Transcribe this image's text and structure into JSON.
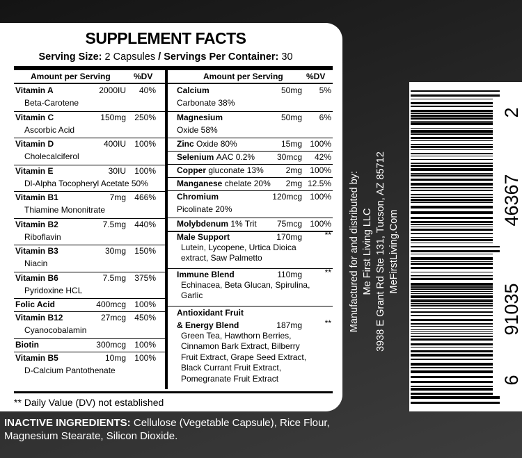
{
  "header": {
    "title": "SUPPLEMENT FACTS",
    "serving_size_label": "Serving Size:",
    "serving_size": "2 Capsules",
    "separator": "/",
    "servings_label": "Servings Per Container:",
    "servings": "30"
  },
  "columns": {
    "amount": "Amount per Serving",
    "dv": "%DV"
  },
  "left_rows": [
    {
      "name": "Vitamin A",
      "amount": "2000IU",
      "dv": "40%",
      "detail": [
        "Beta-Carotene"
      ]
    },
    {
      "name": "Vitamin C",
      "amount": "150mg",
      "dv": "250%",
      "detail": [
        "Ascorbic Acid"
      ]
    },
    {
      "name": "Vitamin D",
      "amount": "400IU",
      "dv": "100%",
      "detail": [
        "Cholecalciferol"
      ]
    },
    {
      "name": "Vitamin E",
      "amount": "30IU",
      "dv": "100%",
      "detail": [
        "Dl-Alpha Tocopheryl Acetate 50%"
      ]
    },
    {
      "name": "Vitamin B1",
      "amount": "7mg",
      "dv": "466%",
      "detail": [
        "Thiamine Mononitrate"
      ]
    },
    {
      "name": "Vitamin B2",
      "amount": "7.5mg",
      "dv": "440%",
      "detail": [
        "Riboflavin"
      ]
    },
    {
      "name": "Vitamin B3",
      "amount": "30mg",
      "dv": "150%",
      "detail": [
        "Niacin"
      ]
    },
    {
      "name": "Vitamin B6",
      "amount": "7.5mg",
      "dv": "375%",
      "detail": [
        "Pyridoxine HCL"
      ]
    },
    {
      "name": "Folic Acid",
      "amount": "400mcg",
      "dv": "100%"
    },
    {
      "name": "Vitamin B12",
      "amount": "27mcg",
      "dv": "450%",
      "detail": [
        "Cyanocobalamin"
      ]
    },
    {
      "name": "Biotin",
      "amount": "300mcg",
      "dv": "100%"
    },
    {
      "name": "Vitamin B5",
      "amount": "10mg",
      "dv": "100%",
      "detail": [
        "D-Calcium Pantothenate"
      ]
    }
  ],
  "right_rows": [
    {
      "name": "Calcium",
      "amount": "50mg",
      "dv": "5%",
      "detail": [
        "Carbonate 38%"
      ]
    },
    {
      "name": "Magnesium",
      "amount": "50mg",
      "dv": "6%",
      "detail": [
        "Oxide 58%"
      ]
    },
    {
      "name": "Zinc",
      "extra": "Oxide 80%",
      "amount": "15mg",
      "dv": "100%"
    },
    {
      "name": "Selenium",
      "extra": "AAC 0.2%",
      "amount": "30mcg",
      "dv": "42%"
    },
    {
      "name": "Copper",
      "extra": "gluconate 13%",
      "amount": "2mg",
      "dv": "100%"
    },
    {
      "name": "Manganese",
      "extra": "chelate 20%",
      "amount": "2mg",
      "dv": "12.5%"
    },
    {
      "name": "Chromium",
      "amount": "120mcg",
      "dv": "100%",
      "detail": [
        "Picolinate 20%"
      ]
    },
    {
      "name": "Molybdenum",
      "extra": "1% Trit",
      "amount": "75mcg",
      "dv": "100%"
    },
    {
      "name": "Male Support",
      "amount": "170mg",
      "dv": "**",
      "detail": [
        "Lutein, Lycopene, Urtica Dioica",
        "extract, Saw Palmetto"
      ]
    },
    {
      "name": "Immune Blend",
      "amount": "110mg",
      "dv": "**",
      "detail": [
        "Echinacea, Beta Glucan, Spirulina,",
        "Garlic"
      ]
    },
    {
      "heading": "Antioxidant Fruit",
      "name": "& Energy Blend",
      "amount": "187mg",
      "dv": "**",
      "detail": [
        "Green Tea, Hawthorn Berries,",
        "Cinnamon Bark Extract, Bilberry",
        "Fruit Extract, Grape Seed Extract,",
        "Black Currant Fruit Extract,",
        "Pomegranate Fruit Extract"
      ]
    }
  ],
  "footnote": "** Daily Value (DV) not established",
  "manufacturer": [
    "Manufactured for and distributed by:",
    "Me First Living LLC",
    "3938 E Grant Rd Ste 131, Tucson, AZ 85712",
    "MeFirstLiving.Com"
  ],
  "barcode_digits": [
    "6",
    "91035",
    "46367",
    "2"
  ],
  "inactive": {
    "label": "INACTIVE INGREDIENTS:",
    "text": "Cellulose (Vegetable Capsule), Rice Flour, Magnesium Stearate, Silicon Dioxide."
  }
}
